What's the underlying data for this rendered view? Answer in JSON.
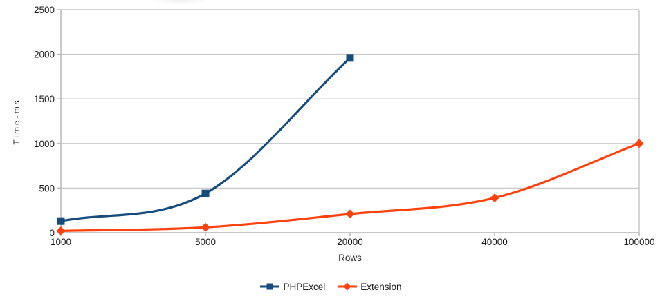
{
  "chart_data": {
    "type": "line",
    "title": "",
    "xlabel": "Rows",
    "ylabel": "Time-ms",
    "categories": [
      "1000",
      "5000",
      "20000",
      "40000",
      "100000"
    ],
    "series": [
      {
        "name": "PHPExcel",
        "color": "#154b7d",
        "marker": "square",
        "values": [
          130,
          440,
          1960,
          null,
          null
        ]
      },
      {
        "name": "Extension",
        "color": "#ff420e",
        "marker": "diamond",
        "values": [
          20,
          60,
          210,
          390,
          1000
        ]
      }
    ],
    "y_ticks": [
      0,
      500,
      1000,
      1500,
      2000,
      2500
    ],
    "ylim": [
      0,
      2500
    ],
    "x_axis_type": "category-equally-spaced",
    "grid": "horizontal",
    "line_style": "smooth",
    "legend_position": "bottom-center"
  },
  "colors": {
    "background": "#ffffff",
    "gridline": "#c9c9c9",
    "axis": "#b3b3b3",
    "plot_border_right": "#c3c3c3",
    "text": "#1a1a1a"
  }
}
